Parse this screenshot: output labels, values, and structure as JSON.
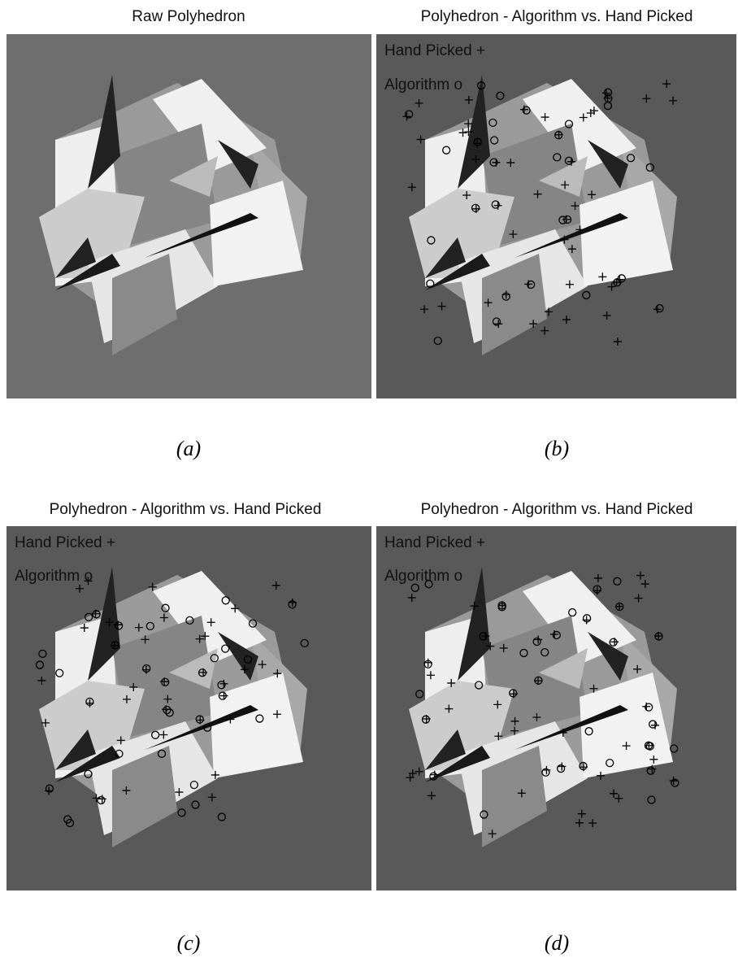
{
  "panels": [
    {
      "title": "Raw Polyhedron",
      "caption": "(a)"
    },
    {
      "title": "Polyhedron -  Algorithm vs. Hand Picked",
      "legend": [
        "Hand Picked +",
        "Algorithm o"
      ],
      "caption": "(b)"
    },
    {
      "title": "Polyhedron -  Algorithm vs. Hand Picked",
      "legend": [
        "Hand Picked +",
        "Algorithm o"
      ],
      "caption": "(c)"
    },
    {
      "title": "Polyhedron -  Algorithm vs. Hand Picked",
      "legend": [
        "Hand Picked +",
        "Algorithm o"
      ],
      "caption": "(d)"
    }
  ]
}
